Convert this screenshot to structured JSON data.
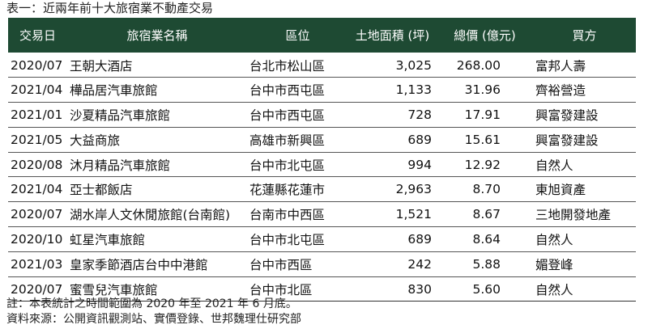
{
  "caption": "表一：近兩年前十大旅宿業不動產交易",
  "headers": {
    "date": "交易日",
    "name": "旅宿業名稱",
    "district": "區位",
    "area": "土地面積 (坪)",
    "price": "總價 (億元)",
    "buyer": "買方"
  },
  "rows": [
    {
      "date": "2020/07",
      "name": "王朝大酒店",
      "district": "台北市松山區",
      "area": "3,025",
      "price": "268.00",
      "buyer": "富邦人壽"
    },
    {
      "date": "2021/04",
      "name": "樺品居汽車旅館",
      "district": "台中市西屯區",
      "area": "1,133",
      "price": "31.96",
      "buyer": "齊裕營造"
    },
    {
      "date": "2021/01",
      "name": "沙夏精品汽車旅館",
      "district": "台中市西屯區",
      "area": "728",
      "price": "17.91",
      "buyer": "興富發建設"
    },
    {
      "date": "2021/05",
      "name": "大益商旅",
      "district": "高雄市新興區",
      "area": "689",
      "price": "15.61",
      "buyer": "興富發建設"
    },
    {
      "date": "2020/08",
      "name": "沐月精品汽車旅館",
      "district": "台中市北屯區",
      "area": "994",
      "price": "12.92",
      "buyer": "自然人"
    },
    {
      "date": "2021/04",
      "name": "亞士都飯店",
      "district": "花蓮縣花蓮市",
      "area": "2,963",
      "price": "8.70",
      "buyer": "東旭資產"
    },
    {
      "date": "2020/07",
      "name": "湖水岸人文休閒旅館(台南館)",
      "district": "台南市中西區",
      "area": "1,521",
      "price": "8.67",
      "buyer": "三地開發地產"
    },
    {
      "date": "2020/10",
      "name": "虹星汽車旅館",
      "district": "台中市北屯區",
      "area": "689",
      "price": "8.64",
      "buyer": "自然人"
    },
    {
      "date": "2021/03",
      "name": "皇家季節酒店台中中港館",
      "district": "台中市西區",
      "area": "242",
      "price": "5.88",
      "buyer": "媚登峰"
    },
    {
      "date": "2020/07",
      "name": "蜜雪兒汽車旅館",
      "district": "台中市北區",
      "area": "830",
      "price": "5.60",
      "buyer": "自然人"
    }
  ],
  "footnote": "註：本表統計之時間範圍為 2020 年至 2021 年 6 月底。",
  "source": "資料來源：公開資訊觀測站、實價登錄、世邦魏理仕研究部",
  "colors": {
    "header_bg": "#1e4a33",
    "header_text": "#ffffff"
  }
}
